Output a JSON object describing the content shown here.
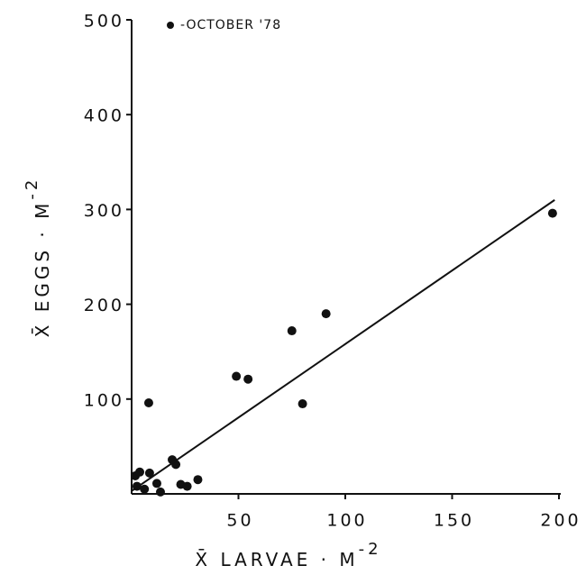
{
  "chart_data": {
    "type": "scatter",
    "legend_label": "-OCTOBER '78",
    "x_label": {
      "text": "X̄ LARVAE · M",
      "superscript": "-2"
    },
    "y_label": {
      "text": "X̄ EGGS · M",
      "superscript": "-2"
    },
    "color": "#111111",
    "series": [
      {
        "name": "-OCTOBER '78",
        "color": "#111111",
        "x": [
          1.7,
          3.8,
          2.5,
          6,
          8.4,
          8,
          11.8,
          13.5,
          19,
          20.7,
          23,
          26,
          31,
          49,
          54.5,
          75,
          91,
          80,
          197
        ],
        "values": [
          19,
          23,
          8,
          5,
          22,
          96,
          11,
          2,
          36,
          31,
          10,
          8,
          15,
          124,
          121,
          172,
          190,
          95,
          296
        ]
      }
    ],
    "fit": {
      "x": [
        0,
        198
      ],
      "values": [
        3,
        310
      ]
    },
    "xlim": [
      0,
      200
    ],
    "xticks": [
      50,
      100,
      150,
      200
    ],
    "ylim": [
      0,
      500
    ],
    "yticks": [
      100,
      200,
      300,
      400,
      500
    ]
  }
}
